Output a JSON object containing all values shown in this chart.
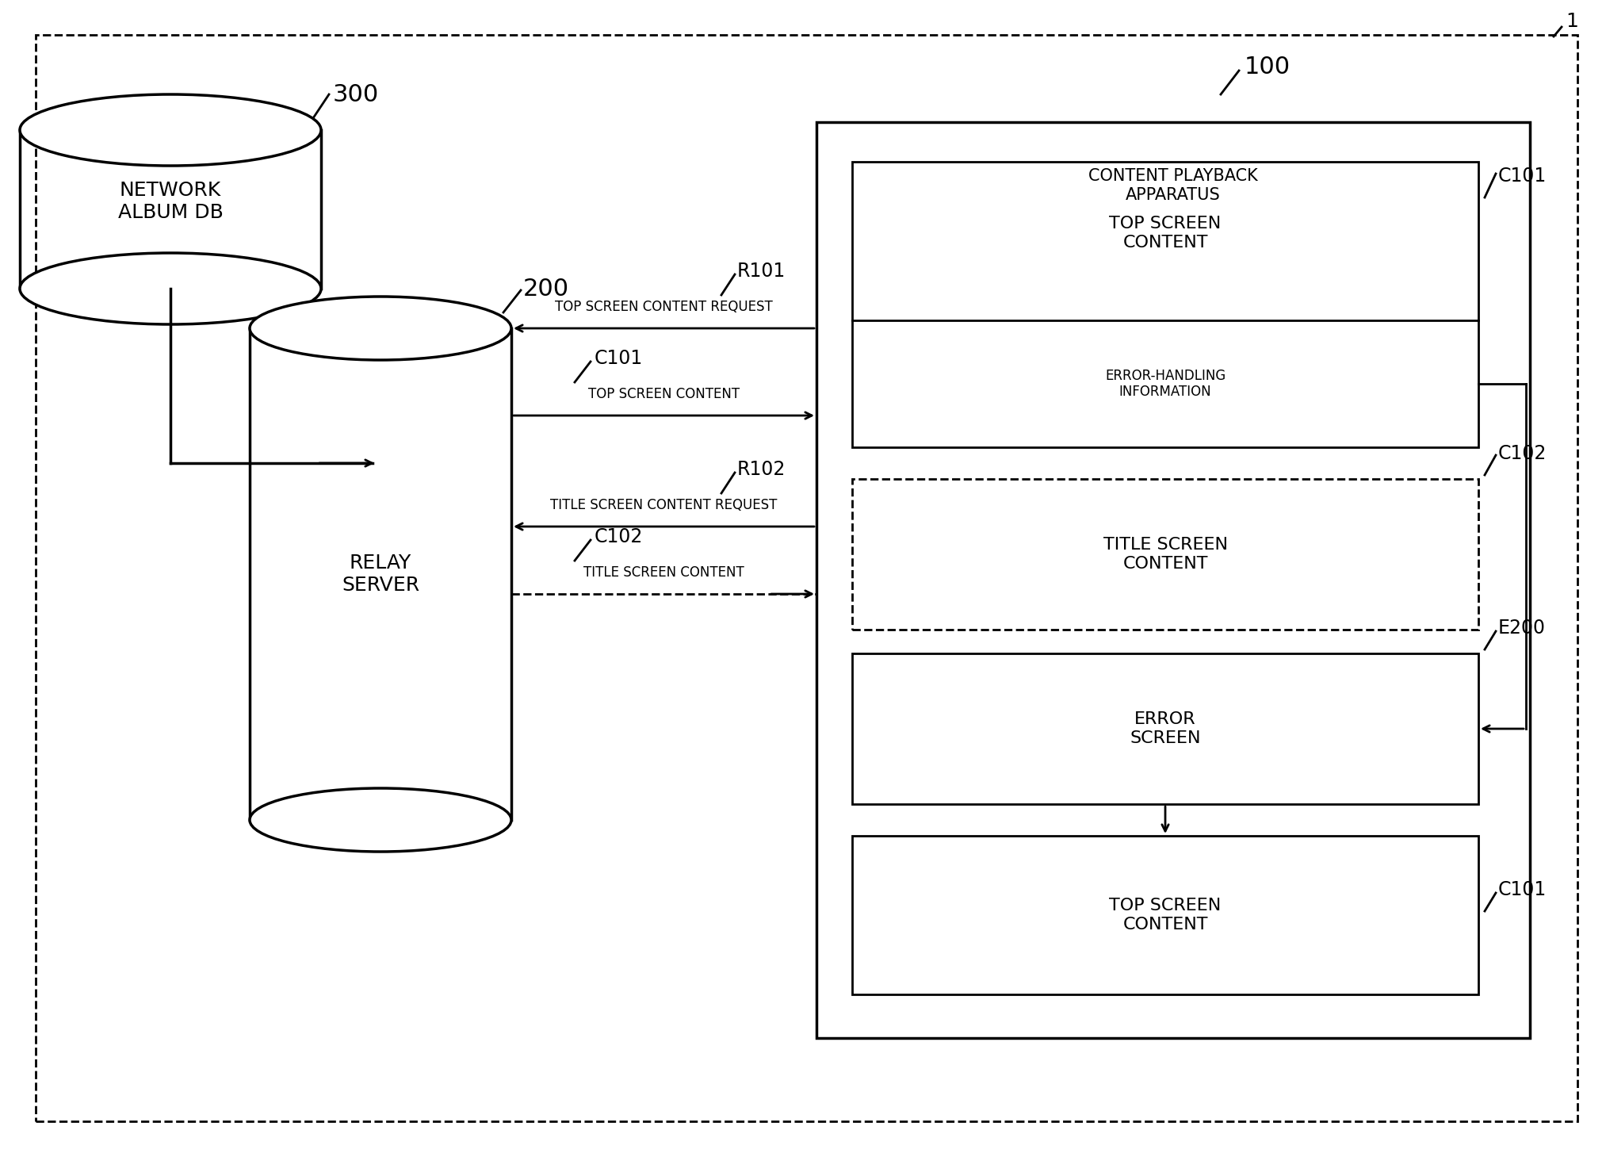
{
  "bg_color": "#ffffff",
  "figure_label": "1",
  "db_label": "NETWORK\nALBUM DB",
  "db_ref": "300",
  "server_label": "RELAY\nSERVER",
  "server_ref": "200",
  "apparatus_label": "CONTENT PLAYBACK\nAPPARATUS",
  "apparatus_ref": "100",
  "box_top_screen": "TOP SCREEN\nCONTENT",
  "box_top_screen_ref": "C101",
  "box_error_handling": "ERROR-HANDLING\nINFORMATION",
  "box_title_screen": "TITLE SCREEN\nCONTENT",
  "box_title_screen_ref": "C102",
  "box_error_screen": "ERROR\nSCREEN",
  "box_error_screen_ref": "E200",
  "box_top_screen2": "TOP SCREEN\nCONTENT",
  "box_top_screen2_ref": "C101",
  "arrow_r101_label": "R101",
  "arrow_r101_text": "TOP SCREEN CONTENT REQUEST",
  "arrow_c101_label": "C101",
  "arrow_c101_text": "TOP SCREEN CONTENT",
  "arrow_r102_label": "R102",
  "arrow_r102_text": "TITLE SCREEN CONTENT REQUEST",
  "arrow_c102_label": "C102",
  "arrow_c102_text": "TITLE SCREEN CONTENT",
  "font_size_box_text": 14,
  "font_size_small": 12,
  "font_size_ref": 15,
  "font_size_apparatus": 15,
  "font_size_fig_label": 18
}
